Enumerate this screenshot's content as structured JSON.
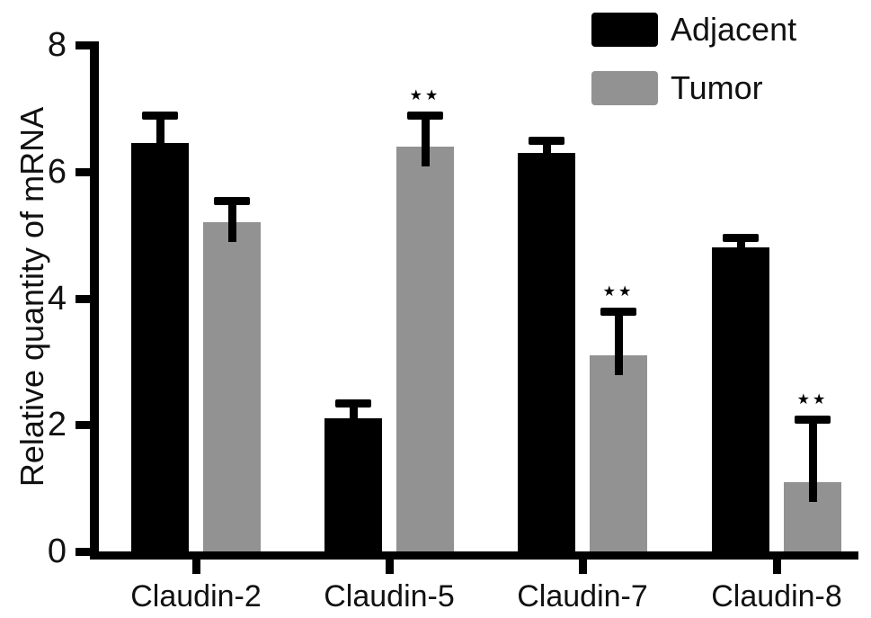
{
  "figure": {
    "background_color": "#ffffff",
    "text_color": "#111111"
  },
  "chart_data": {
    "type": "bar",
    "title": "",
    "xlabel": "",
    "ylabel": "Relative quantity of mRNA",
    "ylim": [
      0,
      8
    ],
    "yticks": [
      0,
      2,
      4,
      6,
      8
    ],
    "grid": false,
    "legend_position": "top-right",
    "error_bars": "upper-only-black-caps",
    "significance_note": "stars shown above Tumor error bars for Claudin-5, Claudin-7, Claudin-8",
    "categories": [
      "Claudin-2",
      "Claudin-5",
      "Claudin-7",
      "Claudin-8"
    ],
    "series": [
      {
        "name": "Adjacent",
        "color": "#000000",
        "values": [
          6.45,
          2.1,
          6.3,
          4.8
        ],
        "errors_plus": [
          0.5,
          0.3,
          0.25,
          0.22
        ],
        "significance": [
          "",
          "",
          "",
          ""
        ]
      },
      {
        "name": "Tumor",
        "color": "#929292",
        "values": [
          5.2,
          6.4,
          3.1,
          1.1
        ],
        "errors_plus": [
          0.4,
          0.55,
          0.75,
          1.05
        ],
        "significance": [
          "",
          "★★",
          "★★",
          "★★"
        ]
      }
    ]
  }
}
